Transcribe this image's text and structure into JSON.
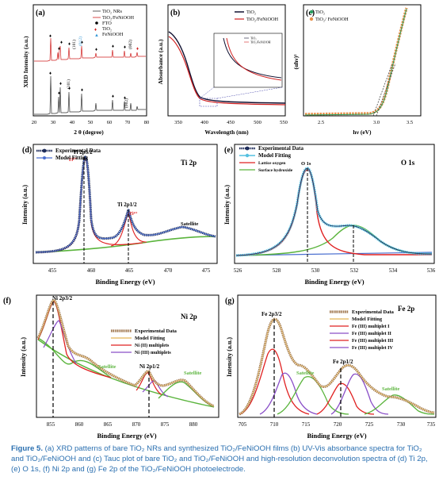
{
  "panels": {
    "a": {
      "letter": "(a)",
      "ylabel": "XRD Intensity (a.u.)",
      "xlabel": "2 θ (degree)",
      "xticks": [
        "20",
        "30",
        "40",
        "50",
        "60",
        "70",
        "80"
      ],
      "legend": [
        "TiO₂ NRs",
        "TiO₂/FeNiOOH",
        "FTO",
        "TiO₂",
        "FeNiOOH"
      ],
      "peak_labels": [
        "(101)",
        "(002)",
        "(012)",
        "(101)",
        "(002)"
      ]
    },
    "b": {
      "letter": "(b)",
      "ylabel": "Absorbance (a.u.)",
      "xlabel": "Wavelength (nm)",
      "xticks": [
        "350",
        "400",
        "450",
        "500",
        "550"
      ],
      "legend": [
        "TiO₂",
        "TiO₂/FeNiOOH"
      ],
      "inset_legend": [
        "TiO₂",
        "TiO₂/FeNiOOH"
      ]
    },
    "c": {
      "letter": "(c)",
      "ylabel": "(αhν)²",
      "xlabel": "hν (eV)",
      "xticks": [
        "2.5",
        "3.0",
        "3.5"
      ],
      "legend": [
        "TiO₂",
        "TiO₂/ FeNiOOH"
      ]
    },
    "d": {
      "letter": "(d)",
      "title": "Ti 2p",
      "ylabel": "Intensity (a.u.)",
      "xlabel": "Binding Energy (eV)",
      "xticks": [
        "455",
        "460",
        "465",
        "470",
        "475"
      ],
      "legend": [
        "Experimental Data",
        "Model Fitting"
      ],
      "labels": {
        "p32": "Ti 2p3/2",
        "ti4a": "Ti⁴⁺",
        "p12": "Ti 2p1/2",
        "ti4b": "Ti⁴⁺",
        "sat": "Satellite"
      }
    },
    "e": {
      "letter": "(e)",
      "title": "O 1s",
      "ylabel": "Intensity (a.u.)",
      "xlabel": "Binding Energy (eV)",
      "xticks": [
        "526",
        "528",
        "530",
        "532",
        "534",
        "536"
      ],
      "legend": [
        "Experimental Data",
        "Model Fitting",
        "Lattice oxygen",
        "Surface hydroxide"
      ],
      "labels": {
        "o1s": "O 1s"
      }
    },
    "f": {
      "letter": "(f)",
      "title": "Ni 2p",
      "ylabel": "Intensity (a.u.)",
      "xlabel": "Binding Energy (eV)",
      "xticks": [
        "855",
        "860",
        "865",
        "870",
        "875",
        "880"
      ],
      "legend": [
        "Experimental Data",
        "Model Fitting",
        "Ni (II) multiplets",
        "Ni (III) multiplets"
      ],
      "labels": {
        "p32": "Ni 2p3/2",
        "p12": "Ni 2p1/2",
        "sat1": "Satellite",
        "sat2": "Satellite"
      }
    },
    "g": {
      "letter": "(g)",
      "title": "Fe 2p",
      "ylabel": "Intensity (a.u.)",
      "xlabel": "Binding Energy (eV)",
      "xticks": [
        "705",
        "710",
        "715",
        "720",
        "725",
        "730",
        "735"
      ],
      "legend": [
        "Experimental Data",
        "Model Fitting",
        "Fe (III) multiplet I",
        "Fe (III) multiplet II",
        "Fe (III) multiplet III",
        "Fe (III) multiplet IV"
      ],
      "labels": {
        "p32": "Fe 2p3/2",
        "p12": "Fe 2p1/2",
        "sat1": "Satellite",
        "sat2": "Satellite"
      }
    }
  },
  "caption": {
    "label": "Figure 5.",
    "text": " (a) XRD patterns of bare TiO₂ NRs and synthesized TiO₂/FeNiOOH films (b) UV-Vis absorbance spectra for TiO₂ and TiO₂/FeNiOOH and (c) Tauc plot of bare TiO₂ and TiO₂/FeNiOOH and high-resolution deconvolution spectra of (d) Ti 2p, (e) O 1s, (f) Ni 2p and (g) Fe 2p of the TiO₂/FeNiOOH photoelectrode."
  },
  "colors": {
    "caption": "#2a6fb0",
    "exp_dark": "#1e2c5a",
    "fit_blue": "#4a6fd0",
    "red": "#e02020",
    "green": "#5ab43c",
    "purple": "#8a4fc8",
    "brown": "#a07850",
    "orange": "#e8904a",
    "cyan": "#54c0e0",
    "tauc_green": "#2aa060"
  }
}
